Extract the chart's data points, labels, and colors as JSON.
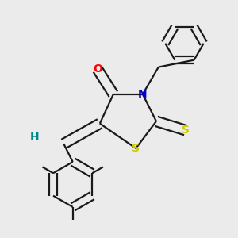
{
  "bg_color": "#ebebeb",
  "bond_color": "#1a1a1a",
  "bond_width": 1.6,
  "atom_colors": {
    "O": "#ff0000",
    "N": "#0000cc",
    "S_ring": "#cccc00",
    "S_exo": "#cccc00",
    "H": "#008888"
  },
  "figsize": [
    3.0,
    3.0
  ],
  "dpi": 100
}
